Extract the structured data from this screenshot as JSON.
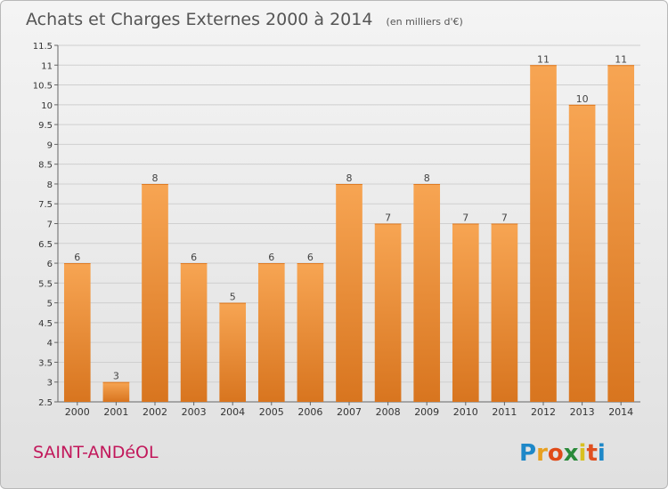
{
  "chart_data": {
    "type": "bar",
    "title": "Achats et Charges Externes 2000 à 2014",
    "subtitle": "(en milliers d'€)",
    "categories": [
      "2000",
      "2001",
      "2002",
      "2003",
      "2004",
      "2005",
      "2006",
      "2007",
      "2008",
      "2009",
      "2010",
      "2011",
      "2012",
      "2013",
      "2014"
    ],
    "values": [
      6,
      3,
      8,
      6,
      5,
      6,
      6,
      8,
      7,
      8,
      7,
      7,
      11,
      10,
      11
    ],
    "data_labels": [
      "6",
      "3",
      "8",
      "6",
      "5",
      "6",
      "6",
      "8",
      "7",
      "8",
      "7",
      "7",
      "11",
      "10",
      "11"
    ],
    "ylim": [
      2.5,
      11.5
    ],
    "yticks": [
      2.5,
      3,
      3.5,
      4,
      4.5,
      5,
      5.5,
      6,
      6.5,
      7,
      7.5,
      8,
      8.5,
      9,
      9.5,
      10,
      10.5,
      11,
      11.5
    ],
    "ytick_labels": [
      "2.5",
      "3",
      "3.5",
      "4",
      "4.5",
      "5",
      "5.5",
      "6",
      "6.5",
      "7",
      "7.5",
      "8",
      "8.5",
      "9",
      "9.5",
      "10",
      "10.5",
      "11",
      "11.5"
    ],
    "grid": true,
    "bar_color_top": "#f7a553",
    "bar_color_bottom": "#d8751f"
  },
  "footer": {
    "commune": "SAINT-ANDéOL",
    "logo_letters": [
      "P",
      "r",
      "o",
      "x",
      "i",
      "t",
      "i"
    ],
    "logo_colors": [
      "#1e88c8",
      "#e8a020",
      "#e04a18",
      "#2a8a3a",
      "#d8c020",
      "#e05020",
      "#1e88c8"
    ]
  }
}
